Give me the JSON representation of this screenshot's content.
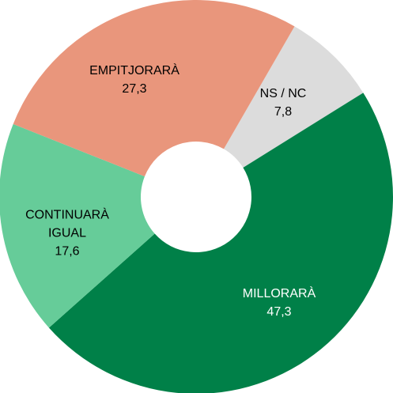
{
  "chart_data": {
    "type": "donut",
    "categories": [
      "NS / NC",
      "MILLORARÀ",
      "CONTINUARÀ IGUAL",
      "EMPITJORARÀ"
    ],
    "values": [
      7.8,
      47.3,
      17.6,
      27.3
    ],
    "value_labels": [
      "7,8",
      "47,3",
      "17,6",
      "27,3"
    ],
    "colors": [
      "#dcdcdc",
      "#008048",
      "#66cc99",
      "#e9967c"
    ]
  }
}
